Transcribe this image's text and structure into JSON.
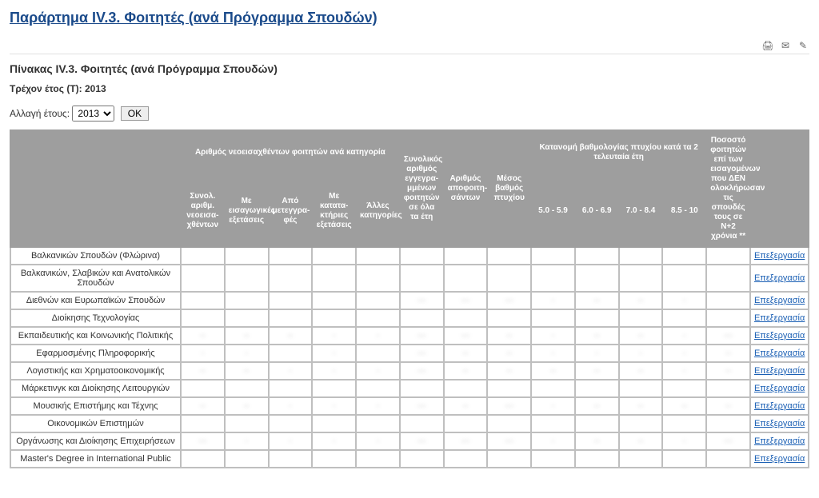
{
  "page_title": "Παράρτημα IV.3. Φοιτητές (ανά Πρόγραμμα Σπουδών)",
  "table_title": "Πίνακας IV.3. Φοιτητές (ανά Πρόγραμμα Σπουδών)",
  "current_year_label": "Τρέχον έτος (Τ): 2013",
  "year_change_label": "Αλλαγή έτους:",
  "year_selected": "2013",
  "ok_label": "OK",
  "edit_label": "Επεξεργασία",
  "headers": {
    "group_newstudents": "Αριθμός νεοεισαχθέντων φοιτητών ανά κατηγορία",
    "group_gradedist": "Κατανομή βαθμολογίας πτυχίου κατά τα 2 τελευταία έτη",
    "col_total_new": "Συνολ. αριθμ. νεοεισα-χθέντων",
    "col_exams": "Με εισαγωγικές εξετάσεις",
    "col_transfer": "Από μετεγγρα-φές",
    "col_katataktiries": "Με κατατα-κτήριες εξετάσεις",
    "col_other": "Άλλες κατηγορίες",
    "col_total_enrolled": "Συνολικός αριθμός εγγεγρα-μμένων φοιτητών σε όλα τα έτη",
    "col_graduates": "Αριθμός αποφοιτη-σάντων",
    "col_avg_grade": "Μέσος βαθμός πτυχίου",
    "col_50_59": "5.0 - 5.9",
    "col_60_69": "6.0 - 6.9",
    "col_70_84": "7.0 - 8.4",
    "col_85_10": "8.5 - 10",
    "col_pct_not_finished": "Ποσοστό φοιτητών επί των εισαγομένων που ΔΕΝ ολοκλήρωσαν τις σπουδές τους σε Ν+2 χρόνια **"
  },
  "rows": [
    {
      "label": "Βαλκανικών Σπουδών (Φλώρινα)",
      "cells": [
        "",
        "",
        "",
        "",
        "",
        "",
        "",
        "",
        "",
        "",
        "",
        "",
        ""
      ]
    },
    {
      "label": "Βαλκανικών, Σλαβικών και Ανατολικών Σπουδών",
      "cells": [
        "",
        "",
        "",
        "",
        "",
        "",
        "",
        "",
        "",
        "",
        "",
        "",
        ""
      ]
    },
    {
      "label": "Διεθνών και Ευρωπαϊκών Σπουδών",
      "cells": [
        "",
        "",
        "",
        "",
        "",
        "···",
        "···",
        "···",
        "·",
        "··",
        "··",
        "·",
        ""
      ]
    },
    {
      "label": "Διοίκησης Τεχνολογίας",
      "cells": [
        "",
        "",
        "",
        "",
        "",
        "",
        "",
        "",
        "",
        "",
        "",
        "",
        ""
      ]
    },
    {
      "label": "Εκπαιδευτικής και Κοινωνικής Πολιτικής",
      "cells": [
        "··",
        "··",
        "··",
        "·",
        "·",
        "···",
        "···",
        "··",
        "·",
        "··",
        "··",
        "·",
        "···"
      ]
    },
    {
      "label": "Εφαρμοσμένης Πληροφορικής",
      "cells": [
        "·",
        "·",
        "",
        "·",
        "",
        "···",
        "··",
        "··",
        "·",
        "·",
        "·",
        "·",
        "··"
      ]
    },
    {
      "label": "Λογιστικής και Χρηματοοικονομικής",
      "cells": [
        "··",
        "··",
        "·",
        "·",
        "·",
        "···",
        "··",
        "··",
        "··",
        "··",
        "··",
        "·",
        "··"
      ]
    },
    {
      "label": "Μάρκετινγκ και Διοίκησης Λειτουργιών",
      "cells": [
        "",
        "",
        "",
        "",
        "",
        "",
        "",
        "",
        "",
        "",
        "",
        "",
        ""
      ]
    },
    {
      "label": "Μουσικής Επιστήμης και Τέχνης",
      "cells": [
        "··",
        "··",
        "·",
        "·",
        "·",
        "···",
        "··",
        "···",
        "·",
        "··",
        "··",
        "··",
        "··"
      ]
    },
    {
      "label": "Οικονομικών Επιστημών",
      "cells": [
        "",
        "",
        "",
        "",
        "",
        "",
        "",
        "",
        "",
        "",
        "",
        "",
        ""
      ]
    },
    {
      "label": "Οργάνωσης και Διοίκησης Επιχειρήσεων",
      "cells": [
        "···",
        "·",
        "·",
        "·",
        "·",
        "···",
        "···",
        "···",
        "·",
        "··",
        "··",
        "·",
        "···"
      ]
    },
    {
      "label": "Master's Degree in International Public",
      "cells": [
        "",
        "",
        "",
        "",
        "",
        "",
        "",
        "",
        "",
        "",
        "",
        "",
        ""
      ]
    }
  ]
}
